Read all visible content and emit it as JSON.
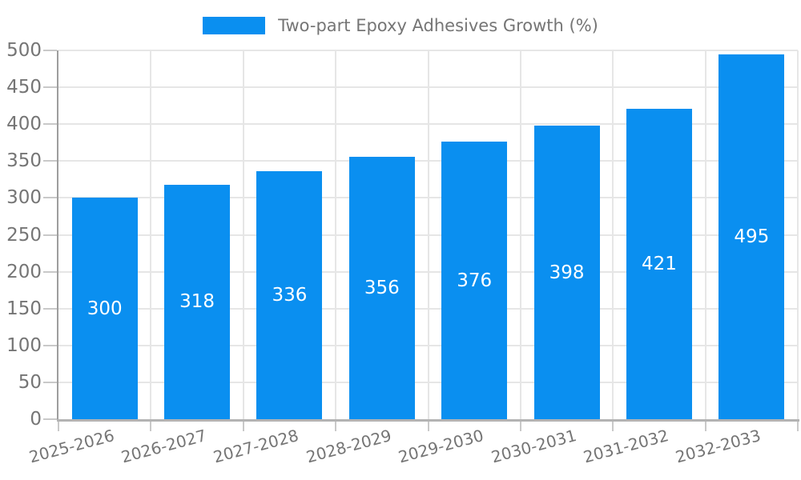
{
  "chart_data": {
    "type": "bar",
    "title": "",
    "legend_label": "Two-part Epoxy Adhesives Growth (%)",
    "legend_position": "top",
    "categories": [
      "2025-2026",
      "2026-2027",
      "2027-2028",
      "2028-2029",
      "2029-2030",
      "2030-2031",
      "2031-2032",
      "2032-2033"
    ],
    "values": [
      300,
      318,
      336,
      356,
      376,
      398,
      421,
      495
    ],
    "yticks": [
      0,
      50,
      100,
      150,
      200,
      250,
      300,
      350,
      400,
      450,
      500
    ],
    "ylim": [
      0,
      500
    ],
    "xlabel": "",
    "ylabel": "",
    "grid": true,
    "bar_label_position": "inside-center",
    "x_label_rotation_deg": -15,
    "colors": {
      "bar": "#0a8ff0",
      "bar_label": "#ffffff",
      "axis_text": "#757575",
      "grid_line": "#e6e6e6",
      "x_axis_line": "#b3b3b3",
      "y_axis_line": "#9e9e9e",
      "tick": "#c9c9c9"
    }
  }
}
